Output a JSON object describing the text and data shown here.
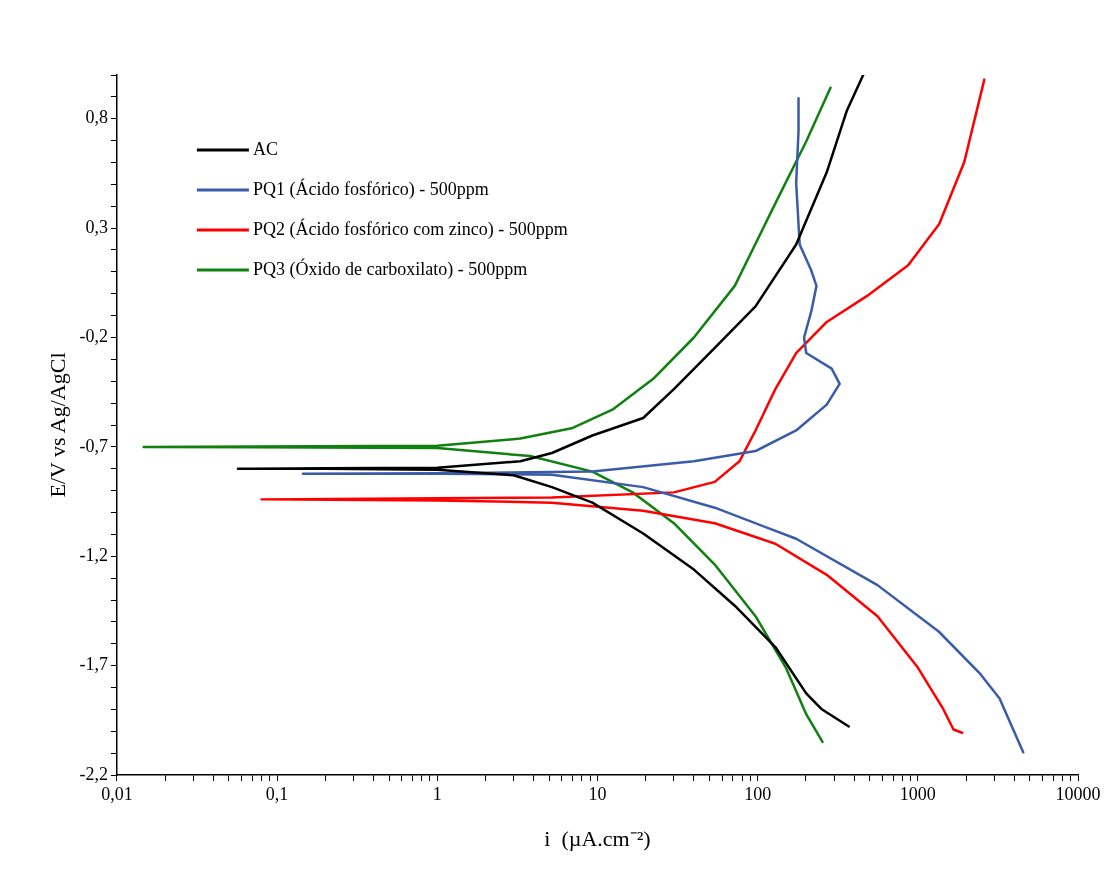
{
  "chart_data": {
    "type": "line",
    "xlabel": "i  (µA.cm⁻²)",
    "ylabel": "E/V vs Ag/AgCl",
    "log": "x",
    "grid": false,
    "legend": "top left",
    "marker": "none",
    "line_style": "solid",
    "xlim": [
      0.01,
      10000
    ],
    "ylim": [
      -2.2,
      1.0
    ],
    "xticks": [
      {
        "value": 0.01,
        "label": "0,01"
      },
      {
        "value": 0.02,
        "label": null
      },
      {
        "value": 0.03,
        "label": null
      },
      {
        "value": 0.04,
        "label": null
      },
      {
        "value": 0.05,
        "label": null
      },
      {
        "value": 0.06,
        "label": null
      },
      {
        "value": 0.07,
        "label": null
      },
      {
        "value": 0.08,
        "label": null
      },
      {
        "value": 0.09,
        "label": null
      },
      {
        "value": 0.1,
        "label": "0,1"
      },
      {
        "value": 0.2,
        "label": null
      },
      {
        "value": 0.3,
        "label": null
      },
      {
        "value": 0.4,
        "label": null
      },
      {
        "value": 0.5,
        "label": null
      },
      {
        "value": 0.6,
        "label": null
      },
      {
        "value": 0.7,
        "label": null
      },
      {
        "value": 0.8,
        "label": null
      },
      {
        "value": 0.9,
        "label": null
      },
      1,
      {
        "value": 2,
        "label": null
      },
      {
        "value": 3,
        "label": null
      },
      {
        "value": 4,
        "label": null
      },
      {
        "value": 5,
        "label": null
      },
      {
        "value": 6,
        "label": null
      },
      {
        "value": 7,
        "label": null
      },
      {
        "value": 8,
        "label": null
      },
      {
        "value": 9,
        "label": null
      },
      10,
      {
        "value": 20,
        "label": null
      },
      {
        "value": 30,
        "label": null
      },
      {
        "value": 40,
        "label": null
      },
      {
        "value": 50,
        "label": null
      },
      {
        "value": 60,
        "label": null
      },
      {
        "value": 70,
        "label": null
      },
      {
        "value": 80,
        "label": null
      },
      {
        "value": 90,
        "label": null
      },
      100,
      {
        "value": 200,
        "label": null
      },
      {
        "value": 300,
        "label": null
      },
      {
        "value": 400,
        "label": null
      },
      {
        "value": 500,
        "label": null
      },
      {
        "value": 600,
        "label": null
      },
      {
        "value": 700,
        "label": null
      },
      {
        "value": 800,
        "label": null
      },
      {
        "value": 900,
        "label": null
      },
      1000,
      {
        "value": 2000,
        "label": null
      },
      {
        "value": 3000,
        "label": null
      },
      {
        "value": 4000,
        "label": null
      },
      {
        "value": 5000,
        "label": null
      },
      {
        "value": 6000,
        "label": null
      },
      {
        "value": 7000,
        "label": null
      },
      {
        "value": 8000,
        "label": null
      },
      {
        "value": 9000,
        "label": null
      },
      10000
    ],
    "yticks": [
      {
        "value": -2.2,
        "label": "-2,2"
      },
      {
        "value": -2.1,
        "label": null
      },
      {
        "value": -2.0,
        "label": null
      },
      {
        "value": -1.9,
        "label": null
      },
      {
        "value": -1.8,
        "label": null
      },
      {
        "value": -1.7,
        "label": "-1,7"
      },
      {
        "value": -1.6,
        "label": null
      },
      {
        "value": -1.5,
        "label": null
      },
      {
        "value": -1.4,
        "label": null
      },
      {
        "value": -1.3,
        "label": null
      },
      {
        "value": -1.2,
        "label": "-1,2"
      },
      {
        "value": -1.1,
        "label": null
      },
      {
        "value": -1.0,
        "label": null
      },
      {
        "value": -0.9,
        "label": null
      },
      {
        "value": -0.8,
        "label": null
      },
      {
        "value": -0.7,
        "label": "-0,7"
      },
      {
        "value": -0.6,
        "label": null
      },
      {
        "value": -0.5,
        "label": null
      },
      {
        "value": -0.4,
        "label": null
      },
      {
        "value": -0.3,
        "label": null
      },
      {
        "value": -0.2,
        "label": "-0,2"
      },
      {
        "value": -0.1,
        "label": null
      },
      {
        "value": 0,
        "label": null
      },
      {
        "value": 0.1,
        "label": null
      },
      {
        "value": 0.2,
        "label": null
      },
      {
        "value": 0.3,
        "label": "0,3"
      },
      {
        "value": 0.4,
        "label": null
      },
      {
        "value": 0.5,
        "label": null
      },
      {
        "value": 0.6,
        "label": null
      },
      {
        "value": 0.7,
        "label": null
      },
      {
        "value": 0.8,
        "label": "0,8"
      },
      {
        "value": 0.9,
        "label": null
      },
      {
        "value": 1.0,
        "label": null
      }
    ],
    "series": [
      {
        "name": "AC",
        "color": "#000000",
        "x": [
          371,
          250,
          201,
          129,
          72,
          40,
          19.3,
          9.3,
          5.2,
          3,
          1,
          0.2,
          0.057,
          0.2,
          1,
          3.3,
          5.2,
          9.3,
          19.3,
          30,
          54,
          97,
          174,
          270,
          361,
          456
        ],
        "values": [
          -1.978,
          -1.898,
          -1.827,
          -1.615,
          -1.426,
          -1.261,
          -1.096,
          -0.955,
          -0.884,
          -0.83,
          -0.805,
          -0.8,
          -0.8,
          -0.798,
          -0.795,
          -0.766,
          -0.728,
          -0.648,
          -0.568,
          -0.436,
          -0.247,
          -0.058,
          0.225,
          0.555,
          0.838,
          1.0
        ]
      },
      {
        "name": "PQ1 (Ácido fosfórico) - 500ppm",
        "color": "#3a5ca8",
        "x": [
          4550,
          3240,
          2420,
          1350,
          560,
          174,
          54,
          19.3,
          5.2,
          1,
          0.145,
          1,
          9.3,
          40,
          97,
          174,
          270,
          325,
          290,
          201,
          195,
          216,
          233,
          216,
          183,
          174,
          180,
          180
        ],
        "values": [
          -2.096,
          -1.85,
          -1.733,
          -1.544,
          -1.332,
          -1.12,
          -0.978,
          -0.884,
          -0.827,
          -0.823,
          -0.823,
          -0.82,
          -0.813,
          -0.766,
          -0.719,
          -0.625,
          -0.507,
          -0.412,
          -0.342,
          -0.271,
          -0.2,
          -0.082,
          0.036,
          0.107,
          0.225,
          0.507,
          0.743,
          0.894
        ]
      },
      {
        "name": "PQ2 (Ácido fosfórico com zinco) - 500ppm",
        "color": "#ff0000",
        "x": [
          1890,
          1670,
          1440,
          1000,
          560,
          270,
          129,
          54,
          19.3,
          5.2,
          1,
          0.08,
          1,
          5.2,
          30,
          54,
          77,
          97,
          129,
          174,
          270,
          480,
          870,
          1360,
          1950,
          2600
        ],
        "values": [
          -2.007,
          -1.992,
          -1.898,
          -1.709,
          -1.474,
          -1.285,
          -1.143,
          -1.049,
          -0.992,
          -0.955,
          -0.945,
          -0.94,
          -0.935,
          -0.931,
          -0.908,
          -0.86,
          -0.766,
          -0.625,
          -0.436,
          -0.271,
          -0.129,
          -0.011,
          0.13,
          0.319,
          0.602,
          0.979
        ]
      },
      {
        "name": "PQ3 (Óxido de carboxilato) - 500ppm",
        "color": "#108010",
        "x": [
          254,
          201,
          150,
          97,
          54,
          30,
          16.6,
          9.3,
          3.8,
          1,
          0.0147,
          1,
          3.3,
          6.9,
          12.4,
          22.3,
          40,
          72,
          129,
          201,
          285
        ],
        "values": [
          -2.049,
          -1.922,
          -1.709,
          -1.474,
          -1.238,
          -1.049,
          -0.908,
          -0.813,
          -0.742,
          -0.705,
          -0.7,
          -0.695,
          -0.662,
          -0.615,
          -0.53,
          -0.389,
          -0.2,
          0.036,
          0.413,
          0.696,
          0.942
        ]
      }
    ]
  }
}
